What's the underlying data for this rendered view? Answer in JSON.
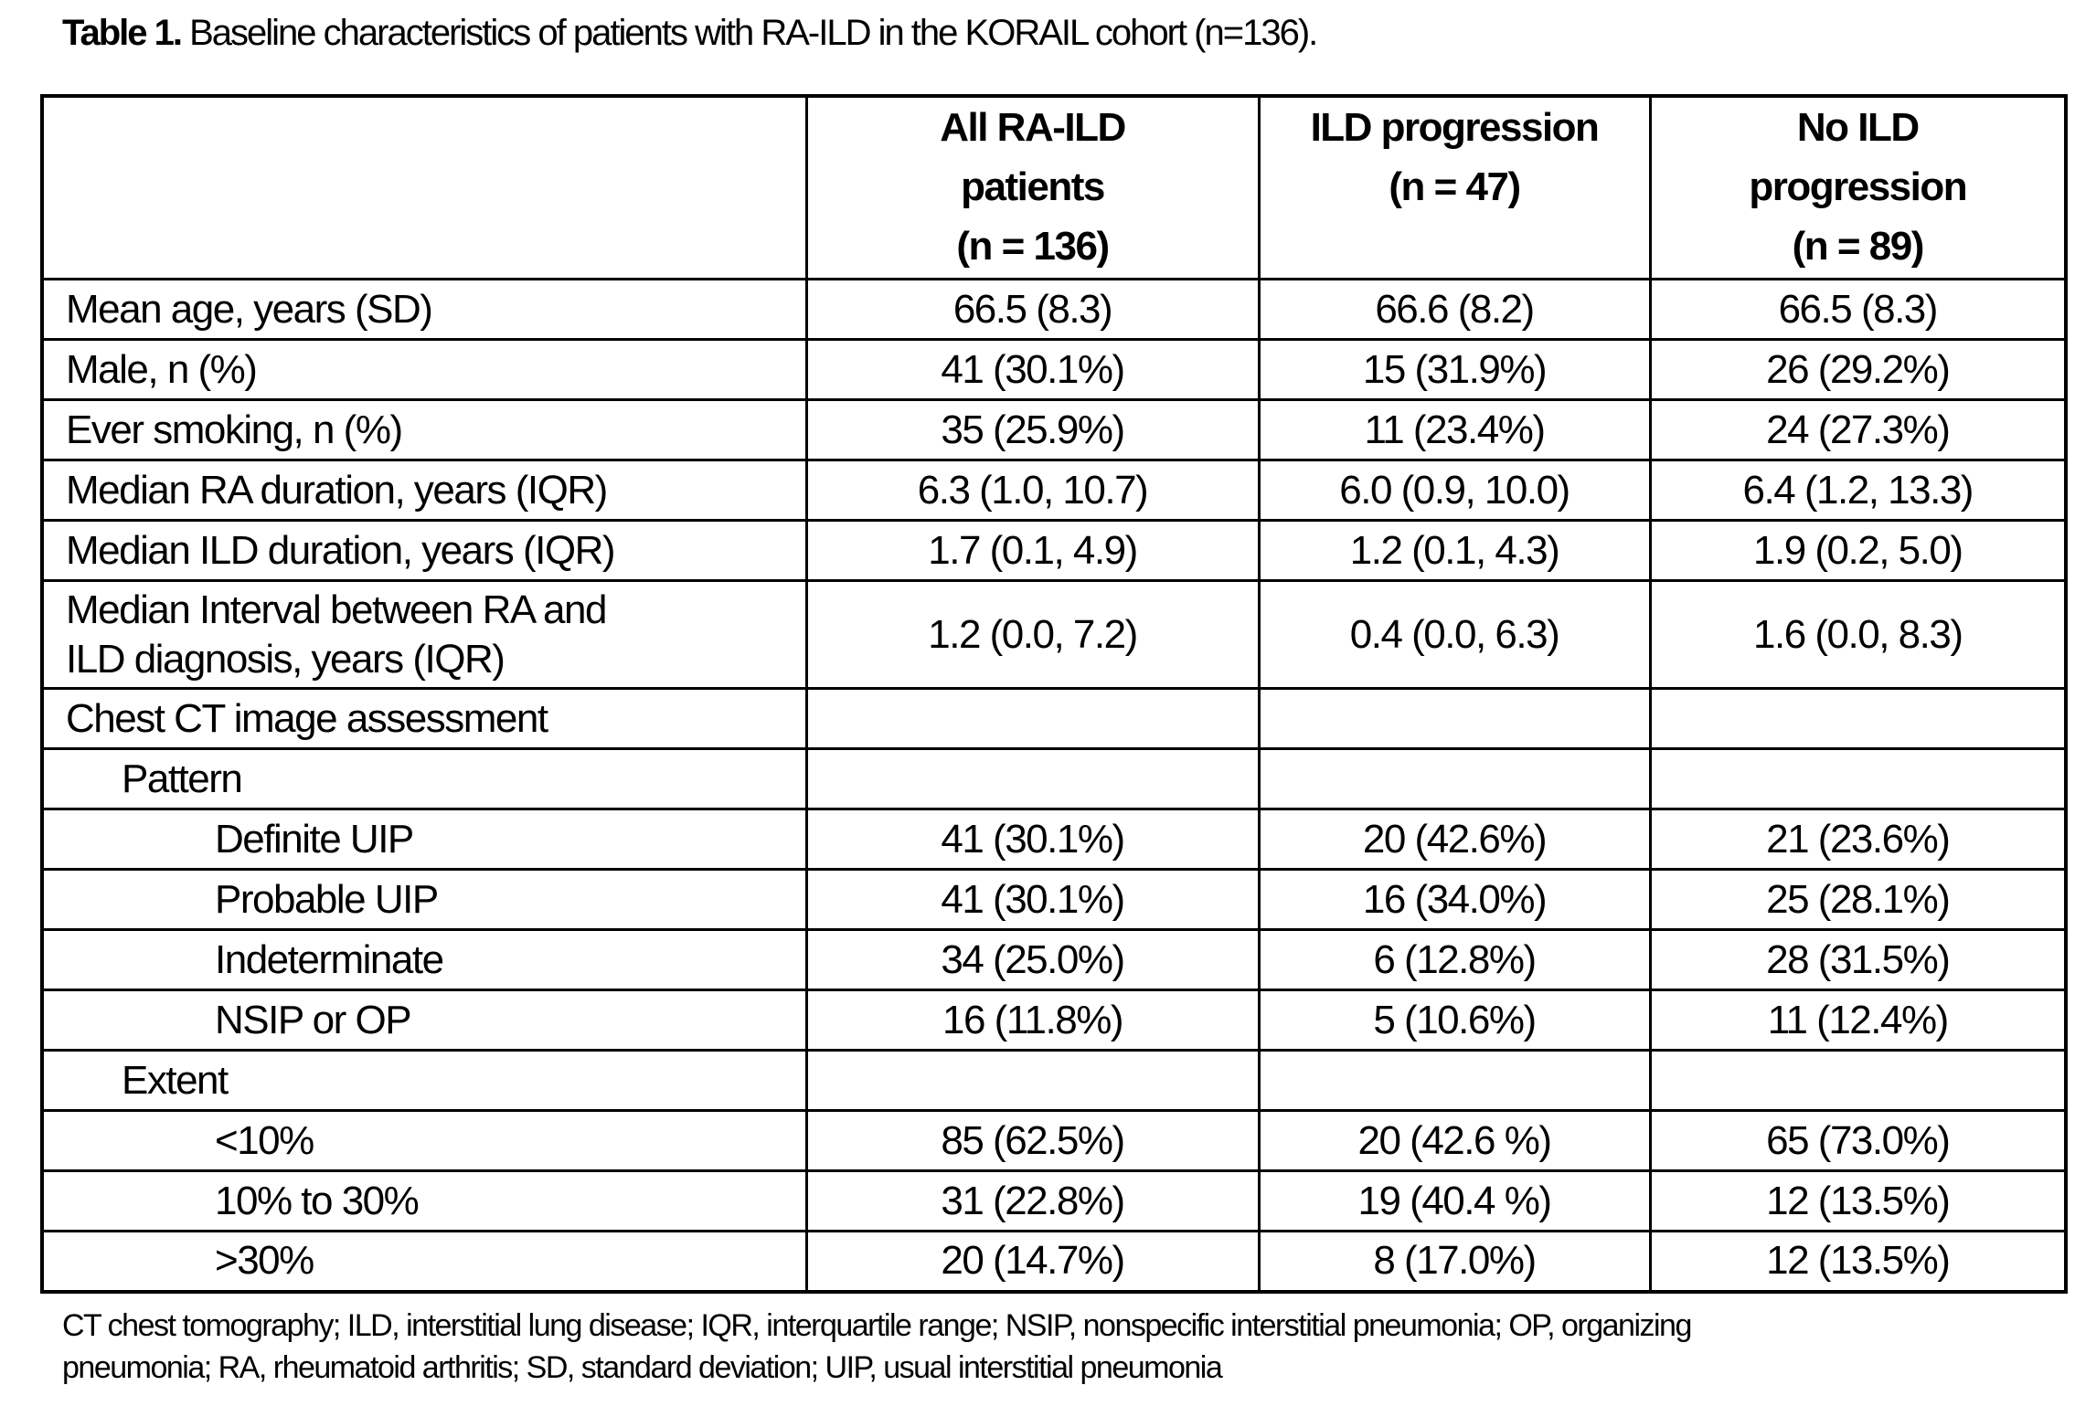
{
  "caption": {
    "label": "Table 1.",
    "text": " Baseline characteristics of patients with RA-ILD in the KORAIL cohort (n=136)."
  },
  "table": {
    "header": [
      {
        "lines": []
      },
      {
        "lines": [
          "All RA-ILD",
          "patients",
          "(n = 136)"
        ]
      },
      {
        "lines": [
          "ILD progression",
          "(n = 47)"
        ]
      },
      {
        "lines": [
          "No ILD",
          "progression",
          "(n = 89)"
        ]
      }
    ],
    "rows": [
      {
        "label": "Mean age, years (SD)",
        "indent": 0,
        "values": [
          "66.5 (8.3)",
          "66.6 (8.2)",
          "66.5 (8.3)"
        ]
      },
      {
        "label": "Male, n (%)",
        "indent": 0,
        "values": [
          "41 (30.1%)",
          "15 (31.9%)",
          "26 (29.2%)"
        ]
      },
      {
        "label": "Ever smoking, n (%)",
        "indent": 0,
        "values": [
          "35 (25.9%)",
          "11 (23.4%)",
          "24 (27.3%)"
        ]
      },
      {
        "label": "Median RA duration, years (IQR)",
        "indent": 0,
        "values": [
          "6.3 (1.0, 10.7)",
          "6.0 (0.9, 10.0)",
          "6.4 (1.2, 13.3)"
        ]
      },
      {
        "label": "Median ILD duration, years (IQR)",
        "indent": 0,
        "values": [
          "1.7 (0.1, 4.9)",
          "1.2 (0.1, 4.3)",
          "1.9 (0.2, 5.0)"
        ]
      },
      {
        "label": "Median Interval between RA and",
        "label2": "ILD diagnosis, years (IQR)",
        "indent": 0,
        "tall": true,
        "values": [
          "1.2 (0.0, 7.2)",
          "0.4 (0.0, 6.3)",
          "1.6 (0.0, 8.3)"
        ]
      },
      {
        "label": "Chest CT image assessment",
        "indent": 0,
        "values": [
          "",
          "",
          ""
        ]
      },
      {
        "label": "Pattern",
        "indent": 1,
        "values": [
          "",
          "",
          ""
        ]
      },
      {
        "label": "Definite UIP",
        "indent": 2,
        "values": [
          "41 (30.1%)",
          "20 (42.6%)",
          "21 (23.6%)"
        ]
      },
      {
        "label": "Probable UIP",
        "indent": 2,
        "values": [
          "41 (30.1%)",
          "16 (34.0%)",
          "25 (28.1%)"
        ]
      },
      {
        "label": "Indeterminate",
        "indent": 2,
        "values": [
          "34 (25.0%)",
          "6 (12.8%)",
          "28 (31.5%)"
        ]
      },
      {
        "label": "NSIP or OP",
        "indent": 2,
        "values": [
          "16 (11.8%)",
          "5 (10.6%)",
          "11 (12.4%)"
        ]
      },
      {
        "label": "Extent",
        "indent": 1,
        "values": [
          "",
          "",
          ""
        ]
      },
      {
        "label": "<10%",
        "indent": 2,
        "values": [
          "85 (62.5%)",
          "20 (42.6 %)",
          "65 (73.0%)"
        ]
      },
      {
        "label": "10% to 30%",
        "indent": 2,
        "values": [
          "31 (22.8%)",
          "19 (40.4 %)",
          "12 (13.5%)"
        ]
      },
      {
        "label": ">30%",
        "indent": 2,
        "values": [
          "20 (14.7%)",
          "8 (17.0%)",
          "12 (13.5%)"
        ]
      }
    ]
  },
  "footnote_lines": [
    "CT chest tomography; ILD, interstitial lung disease; IQR, interquartile range; NSIP, nonspecific interstitial pneumonia; OP, organizing",
    "pneumonia; RA, rheumatoid arthritis; SD, standard deviation; UIP, usual interstitial pneumonia"
  ],
  "colors": {
    "text": "#000000",
    "border": "#000000",
    "background": "#ffffff"
  }
}
